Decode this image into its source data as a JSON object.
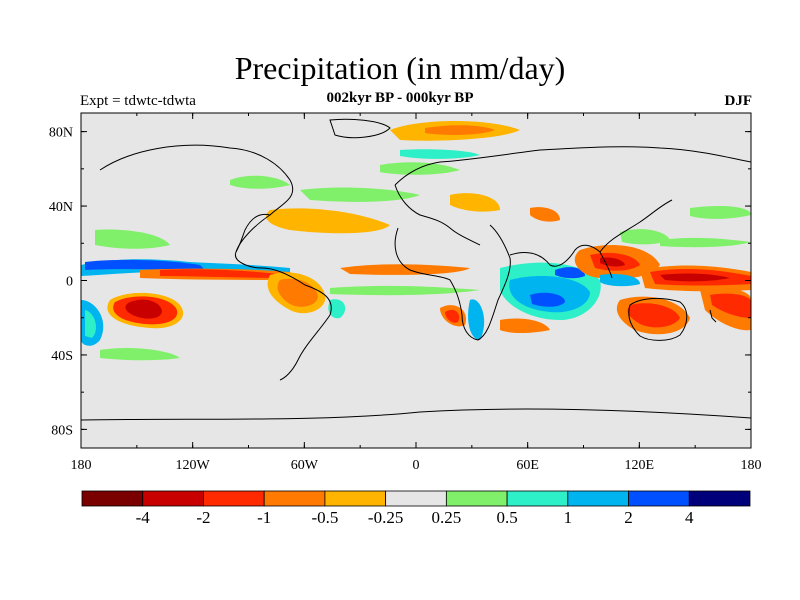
{
  "header": {
    "title": "Precipitation (in mm/day)",
    "subtitle": "002kyr BP - 000kyr BP",
    "left_label": "Expt = tdwtc-tdwta",
    "right_label": "DJF"
  },
  "axes": {
    "lat_ticks": [
      "80N",
      "40N",
      "0",
      "40S",
      "80S"
    ],
    "lon_ticks": [
      "180",
      "120W",
      "60W",
      "0",
      "60E",
      "120E",
      "180"
    ],
    "lon_range": [
      -180,
      180
    ],
    "lat_range": [
      -90,
      90
    ]
  },
  "colorbar": {
    "labels": [
      "-4",
      "-2",
      "-1",
      "-0.5",
      "-0.25",
      "0.25",
      "0.5",
      "1",
      "2",
      "4"
    ],
    "colors": [
      "#7a0000",
      "#c80000",
      "#ff2a00",
      "#ff7a00",
      "#ffb400",
      "#e6e6e6",
      "#80f06a",
      "#2ef0c8",
      "#00b4f0",
      "#0050ff",
      "#00007a"
    ]
  },
  "chart_data": {
    "type": "heatmap",
    "title": "Precipitation (in mm/day)",
    "subtitle": "002kyr BP - 000kyr BP",
    "season": "DJF",
    "experiment": "Expt = tdwtc-tdwta",
    "xlim": [
      -180,
      180
    ],
    "ylim": [
      -90,
      90
    ],
    "contour_levels": [
      -4,
      -2,
      -1,
      -0.5,
      -0.25,
      0.25,
      0.5,
      1,
      2,
      4
    ],
    "anomalies": [
      {
        "lon": -145,
        "lat": -18,
        "value": -4
      },
      {
        "lon": -150,
        "lat": -20,
        "value": -2
      },
      {
        "lon": -120,
        "lat": 5,
        "value": -1
      },
      {
        "lon": -55,
        "lat": -10,
        "value": -1
      },
      {
        "lon": -160,
        "lat": 8,
        "value": 2
      },
      {
        "lon": -135,
        "lat": 10,
        "value": 1
      },
      {
        "lon": -175,
        "lat": -25,
        "value": 0.5
      },
      {
        "lon": 65,
        "lat": -12,
        "value": 2
      },
      {
        "lon": 75,
        "lat": 5,
        "value": 1
      },
      {
        "lon": 105,
        "lat": 10,
        "value": -2
      },
      {
        "lon": 135,
        "lat": 0,
        "value": -2
      },
      {
        "lon": 130,
        "lat": -18,
        "value": -1
      },
      {
        "lon": 165,
        "lat": -10,
        "value": -1
      },
      {
        "lon": 30,
        "lat": 80,
        "value": -1
      },
      {
        "lon": 15,
        "lat": -20,
        "value": -1
      },
      {
        "lon": -40,
        "lat": 40,
        "value": -0.5
      },
      {
        "lon": 60,
        "lat": 30,
        "value": -0.5
      }
    ]
  }
}
